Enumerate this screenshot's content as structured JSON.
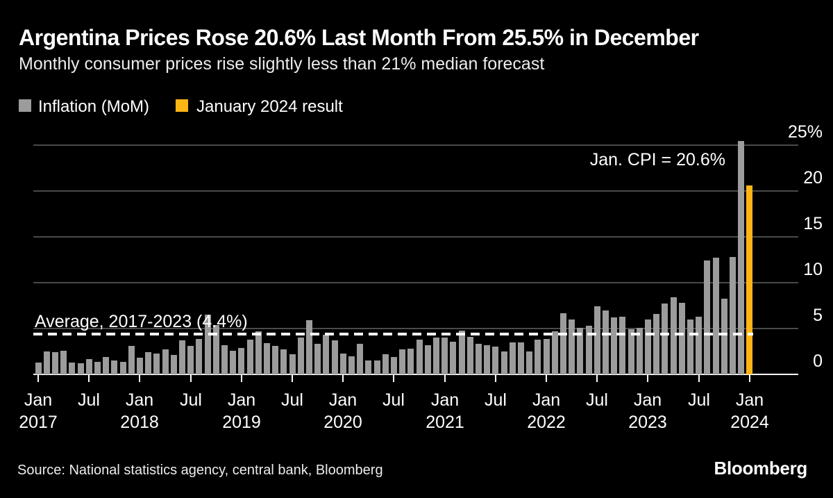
{
  "header": {
    "title": "Argentina Prices Rose 20.6% Last Month From 25.5% in December",
    "subtitle": "Monthly consumer prices rise slightly less than 21% median forecast"
  },
  "footer": {
    "source": "Source: National statistics agency, central bank, Bloomberg",
    "logo": "Bloomberg"
  },
  "colors": {
    "background": "#000000",
    "bar": "#9c9c9c",
    "highlight": "#fdb515",
    "gridline": "#4a4a4a",
    "baseline": "#ffffff",
    "text": "#ffffff"
  },
  "chart_data": {
    "type": "bar",
    "title": "Argentina Prices Rose 20.6% Last Month From 25.5% in December",
    "subtitle": "Monthly consumer prices rise slightly less than 21% median forecast",
    "unit": "percent, month-over-month",
    "start_month": "Jan 2017",
    "end_month": "Jan 2024",
    "values": [
      1.3,
      2.5,
      2.4,
      2.6,
      1.3,
      1.2,
      1.7,
      1.4,
      1.9,
      1.5,
      1.4,
      3.1,
      1.8,
      2.4,
      2.3,
      2.7,
      2.1,
      3.7,
      3.1,
      3.9,
      6.5,
      5.4,
      3.2,
      2.6,
      2.9,
      3.8,
      4.7,
      3.4,
      3.1,
      2.7,
      2.2,
      4.0,
      5.9,
      3.3,
      4.3,
      3.7,
      2.3,
      2.0,
      3.3,
      1.5,
      1.5,
      2.2,
      1.9,
      2.7,
      2.8,
      3.8,
      3.2,
      4.0,
      4.0,
      3.6,
      4.8,
      4.1,
      3.3,
      3.2,
      3.0,
      2.5,
      3.5,
      3.5,
      2.5,
      3.8,
      3.9,
      4.7,
      6.7,
      6.0,
      5.1,
      5.3,
      7.4,
      7.0,
      6.2,
      6.3,
      4.9,
      5.1,
      6.0,
      6.6,
      7.7,
      8.4,
      7.8,
      6.0,
      6.3,
      12.4,
      12.7,
      8.3,
      12.8,
      25.5,
      20.6
    ],
    "highlight_index": 84,
    "legend": [
      {
        "label": "Inflation (MoM)",
        "color": "#9c9c9c"
      },
      {
        "label": "January 2024 result",
        "color": "#fdb515"
      }
    ],
    "legend_position": "top-left",
    "grid": true,
    "ylim": [
      0,
      25
    ],
    "yticks": [
      {
        "value": 0,
        "label": "0"
      },
      {
        "value": 5,
        "label": "5"
      },
      {
        "value": 10,
        "label": "10"
      },
      {
        "value": 15,
        "label": "15"
      },
      {
        "value": 20,
        "label": "20"
      },
      {
        "value": 25,
        "label": "25%"
      }
    ],
    "xticks": [
      {
        "month_index": 0,
        "label": "Jan",
        "year": "2017"
      },
      {
        "month_index": 6,
        "label": "Jul"
      },
      {
        "month_index": 12,
        "label": "Jan",
        "year": "2018"
      },
      {
        "month_index": 18,
        "label": "Jul"
      },
      {
        "month_index": 24,
        "label": "Jan",
        "year": "2019"
      },
      {
        "month_index": 30,
        "label": "Jul"
      },
      {
        "month_index": 36,
        "label": "Jan",
        "year": "2020"
      },
      {
        "month_index": 42,
        "label": "Jul"
      },
      {
        "month_index": 48,
        "label": "Jan",
        "year": "2021"
      },
      {
        "month_index": 54,
        "label": "Jul"
      },
      {
        "month_index": 60,
        "label": "Jan",
        "year": "2022"
      },
      {
        "month_index": 66,
        "label": "Jul"
      },
      {
        "month_index": 72,
        "label": "Jan",
        "year": "2023"
      },
      {
        "month_index": 78,
        "label": "Jul"
      },
      {
        "month_index": 84,
        "label": "Jan",
        "year": "2024"
      }
    ],
    "average_line": {
      "value": 4.4,
      "label": "Average, 2017-2023 (4.4%)"
    },
    "annotation": {
      "text": "Jan. CPI = 20.6%",
      "value": 20.6
    }
  }
}
